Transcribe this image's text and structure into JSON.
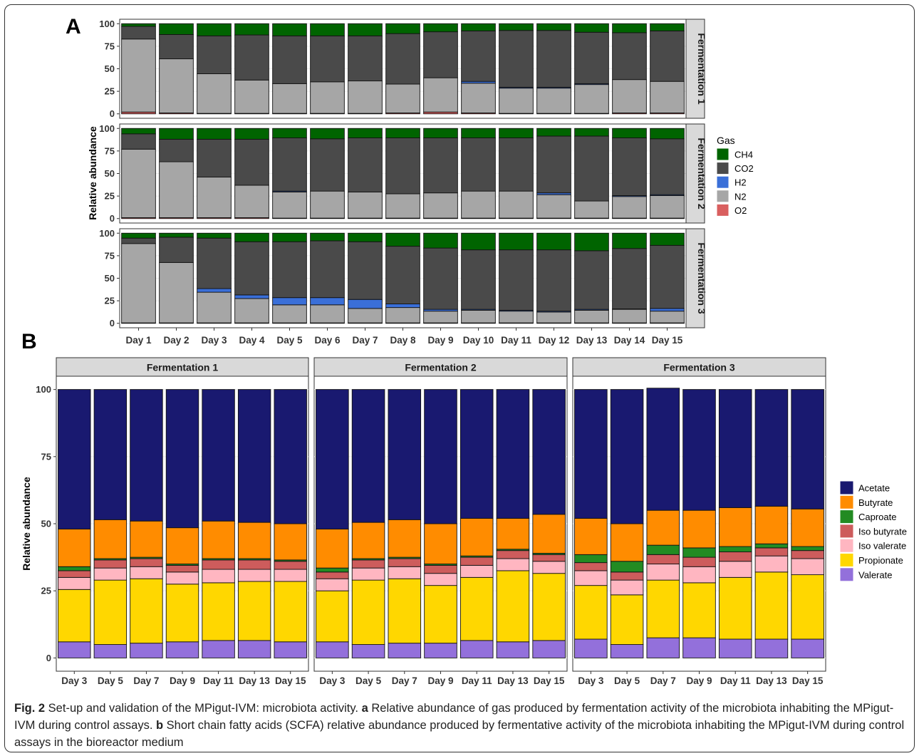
{
  "figure": {
    "caption_label": "Fig. 2",
    "caption_text": " Set-up and validation of the MPigut-IVM: microbiota activity. ",
    "caption_a_label": "a",
    "caption_a_text": " Relative abundance of gas produced by fermentation activity of the microbiota inhabiting the MPigut-IVM during control assays. ",
    "caption_b_label": "b",
    "caption_b_text": " Short chain fatty acids (SCFA) relative abundance produced by fermentative activity of the microbiota inhabiting the MPigut-IVM during control assays in the bioreactor medium"
  },
  "chart_data": [
    {
      "panel_label": "A",
      "type": "bar",
      "stacked": true,
      "ylabel": "Relative abundance",
      "ylim": [
        0,
        100
      ],
      "yticks": [
        0,
        25,
        50,
        75,
        100
      ],
      "legend_title": "Gas",
      "legend_position": "right",
      "categories": [
        "Day 1",
        "Day 2",
        "Day 3",
        "Day 4",
        "Day 5",
        "Day 6",
        "Day 7",
        "Day 8",
        "Day 9",
        "Day 10",
        "Day 11",
        "Day 12",
        "Day 13",
        "Day 14",
        "Day 15"
      ],
      "series_order": [
        "O2",
        "N2",
        "H2",
        "CO2",
        "CH4"
      ],
      "legend_order": [
        "CH4",
        "CO2",
        "H2",
        "N2",
        "O2"
      ],
      "colors": {
        "CH4": "#006400",
        "CO2": "#4a4a4a",
        "H2": "#3a6fd8",
        "N2": "#a6a6a6",
        "O2": "#d95f5f"
      },
      "facets": [
        {
          "name": "Fermentation 1",
          "series": {
            "O2": [
              2,
              1,
              0.5,
              0.5,
              0.5,
              0.5,
              0.5,
              1,
              2,
              1,
              0.5,
              0.5,
              0.5,
              1,
              1
            ],
            "N2": [
              81,
              60,
              44,
              37,
              33,
              35,
              36,
              32,
              38,
              33,
              28,
              28,
              32,
              37,
              35
            ],
            "H2": [
              0,
              0,
              0,
              0,
              0,
              0,
              0,
              0,
              0,
              2,
              1,
              1,
              1,
              0,
              0
            ],
            "CO2": [
              14,
              27,
              42,
              50,
              53,
              51,
              50,
              56,
              51,
              56,
              63,
              63,
              57,
              52,
              56
            ],
            "CH4": [
              3,
              12,
              13.5,
              12.5,
              13.5,
              13.5,
              13.5,
              11,
              9,
              8,
              7.5,
              7.5,
              9.5,
              10,
              8
            ]
          }
        },
        {
          "name": "Fermentation 2",
          "series": {
            "O2": [
              1,
              1,
              1,
              1,
              0.5,
              0.5,
              0.5,
              0.5,
              0.5,
              0.5,
              0.5,
              0.5,
              0.5,
              0.5,
              0.5
            ],
            "N2": [
              76,
              62,
              45,
              36,
              29,
              30,
              29,
              27,
              28,
              30,
              30,
              26,
              19,
              24,
              25
            ],
            "H2": [
              0,
              0,
              0,
              0,
              1,
              0,
              0,
              0,
              0,
              0,
              0,
              2,
              0,
              1,
              1
            ],
            "CO2": [
              17,
              25,
              42,
              51,
              59,
              58,
              60,
              62,
              61,
              59,
              59,
              63,
              72,
              64,
              62
            ],
            "CH4": [
              6,
              12,
              12,
              12,
              10.5,
              11.5,
              10.5,
              10.5,
              10.5,
              10.5,
              10.5,
              8.5,
              8.5,
              10.5,
              11.5
            ]
          }
        },
        {
          "name": "Fermentation 3",
          "series": {
            "O2": [
              0.5,
              0.5,
              0.5,
              0.5,
              0.5,
              0.5,
              0.5,
              0.5,
              0.5,
              0.5,
              0.5,
              0.5,
              0.5,
              0.5,
              0.5
            ],
            "N2": [
              88,
              67,
              34,
              27,
              20,
              20,
              16,
              17,
              13,
              14,
              13,
              12,
              14,
              15,
              13
            ],
            "H2": [
              0,
              0,
              4,
              4,
              8,
              8,
              10,
              4,
              2,
              1,
              1,
              1,
              1,
              0.5,
              3
            ],
            "CO2": [
              6,
              28,
              56,
              59,
              62,
              63,
              64,
              64,
              68,
              66,
              67,
              68,
              65,
              67,
              70
            ],
            "CH4": [
              5.5,
              4.5,
              5.5,
              9.5,
              9.5,
              8.5,
              9.5,
              14.5,
              16.5,
              18.5,
              18.5,
              18.5,
              19.5,
              17,
              13.5
            ]
          }
        }
      ]
    },
    {
      "panel_label": "B",
      "type": "bar",
      "stacked": true,
      "ylabel": "Relative abundance",
      "ylim": [
        0,
        100
      ],
      "yticks": [
        0,
        25,
        50,
        75,
        100
      ],
      "legend_position": "right",
      "categories": [
        "Day 3",
        "Day 5",
        "Day 7",
        "Day 9",
        "Day 11",
        "Day 13",
        "Day 15"
      ],
      "series_order": [
        "Valerate",
        "Propionate",
        "Iso valerate",
        "Iso butyrate",
        "Caproate",
        "Butyrate",
        "Acetate"
      ],
      "legend_order": [
        "Acetate",
        "Butyrate",
        "Caproate",
        "Iso butyrate",
        "Iso valerate",
        "Propionate",
        "Valerate"
      ],
      "colors": {
        "Acetate": "#191970",
        "Butyrate": "#ff8c00",
        "Caproate": "#228b22",
        "Iso butyrate": "#cd5c5c",
        "Iso valerate": "#ffb6c1",
        "Propionate": "#ffd700",
        "Valerate": "#9370db"
      },
      "facets": [
        {
          "name": "Fermentation 1",
          "series": {
            "Valerate": [
              6,
              5,
              5.5,
              6,
              6.5,
              6.5,
              6
            ],
            "Propionate": [
              19.5,
              24,
              24,
              21.5,
              21.5,
              22,
              22.5
            ],
            "Iso valerate": [
              4.5,
              4.5,
              4.5,
              4.5,
              5,
              4.5,
              4.5
            ],
            "Iso butyrate": [
              2.5,
              3,
              3,
              2.5,
              3.5,
              3.5,
              3
            ],
            "Caproate": [
              1.5,
              0.5,
              0.5,
              0.5,
              0.5,
              0.5,
              0.5
            ],
            "Butyrate": [
              14,
              14.5,
              13.5,
              13.5,
              14,
              13.5,
              13.5
            ],
            "Acetate": [
              52,
              48.5,
              49,
              51.5,
              49,
              49.5,
              50
            ]
          }
        },
        {
          "name": "Fermentation 2",
          "series": {
            "Valerate": [
              6,
              5,
              5.5,
              5.5,
              6.5,
              6,
              6.5
            ],
            "Propionate": [
              19,
              24,
              24,
              21.5,
              23.5,
              26.5,
              25
            ],
            "Iso valerate": [
              4.5,
              4.5,
              4.5,
              4.5,
              4.5,
              4.5,
              4.5
            ],
            "Iso butyrate": [
              2.5,
              3,
              3,
              3,
              3,
              3,
              2.5
            ],
            "Caproate": [
              1.5,
              0.5,
              0.5,
              0.5,
              0.5,
              0.5,
              0.5
            ],
            "Butyrate": [
              14.5,
              13.5,
              14,
              15,
              14,
              11.5,
              14.5
            ],
            "Acetate": [
              52,
              49.5,
              48.5,
              50,
              48,
              48,
              46.5
            ]
          }
        },
        {
          "name": "Fermentation 3",
          "series": {
            "Valerate": [
              7,
              5,
              7.5,
              7.5,
              7,
              7,
              7
            ],
            "Propionate": [
              20,
              18.5,
              21.5,
              20.5,
              23,
              25,
              24
            ],
            "Iso valerate": [
              5.5,
              5.5,
              6,
              6,
              6,
              6,
              6
            ],
            "Iso butyrate": [
              3,
              3,
              3.5,
              3.5,
              3.5,
              3,
              3
            ],
            "Caproate": [
              3,
              4,
              3.5,
              3.5,
              2,
              1.5,
              1.5
            ],
            "Butyrate": [
              13.5,
              14,
              13,
              14,
              14.5,
              14,
              14
            ],
            "Acetate": [
              48,
              50,
              45.5,
              45,
              44,
              43.5,
              44.5
            ]
          }
        }
      ]
    }
  ]
}
